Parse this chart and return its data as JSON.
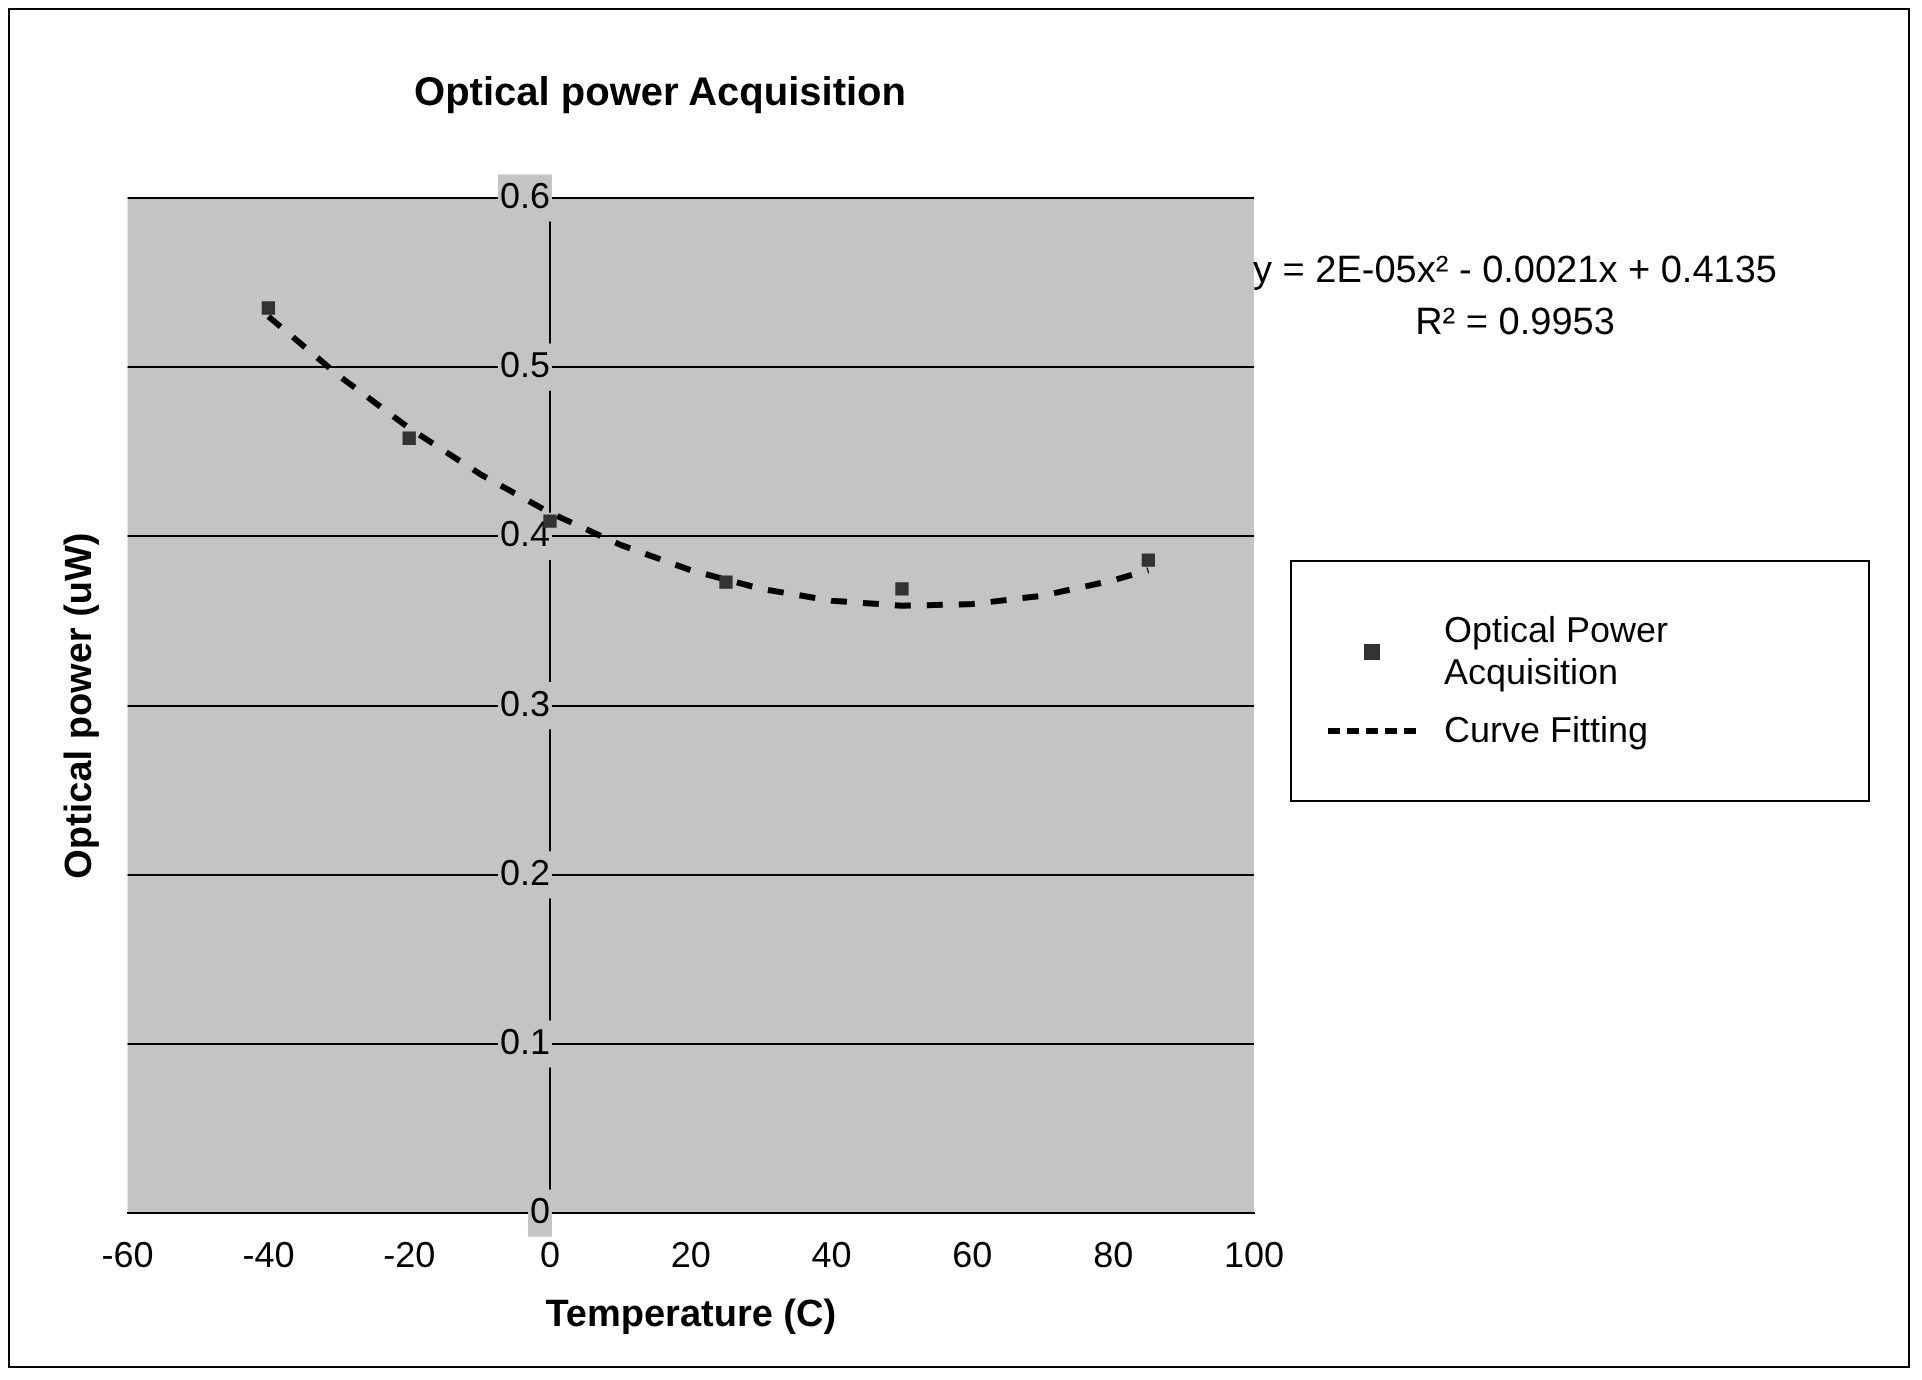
{
  "chart_data": {
    "type": "scatter",
    "title": "Optical power Acquisition",
    "xlabel": "Temperature (C)",
    "ylabel": "Optical power (uW)",
    "xlim": [
      -60,
      100
    ],
    "xticks": [
      -60,
      -40,
      -20,
      0,
      20,
      40,
      60,
      80,
      100
    ],
    "ylim": [
      0,
      0.6
    ],
    "yticks": [
      0,
      0.1,
      0.2,
      0.3,
      0.4,
      0.5,
      0.6
    ],
    "grid": "y",
    "legend": "right",
    "annotations": [
      "y = 2E-05x² - 0.0021x + 0.4135",
      "R² = 0.9953"
    ],
    "series": [
      {
        "name": "Optical Power Acquisition",
        "color": "#333333",
        "marker": "square",
        "x": [
          -40,
          -20,
          0,
          25,
          50,
          85
        ],
        "values": [
          0.535,
          0.458,
          0.409,
          0.373,
          0.369,
          0.386
        ]
      },
      {
        "name": "Curve Fitting",
        "type": "line",
        "color": "#000000",
        "marker": "none",
        "line_style": "dashed",
        "x": [
          -40,
          -30,
          -20,
          -10,
          0,
          10,
          20,
          30,
          40,
          50,
          60,
          70,
          80,
          85
        ],
        "values": [
          0.53,
          0.495,
          0.464,
          0.437,
          0.414,
          0.395,
          0.38,
          0.369,
          0.362,
          0.359,
          0.36,
          0.365,
          0.374,
          0.38
        ]
      }
    ]
  }
}
